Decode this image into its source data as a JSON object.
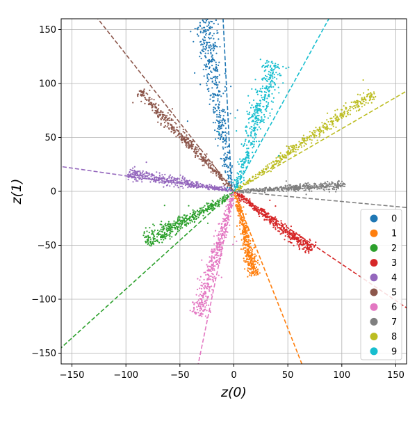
{
  "chart_data": {
    "type": "scatter",
    "title": "",
    "xlabel": "z(0)",
    "ylabel": "z(1)",
    "xlim": [
      -160,
      160
    ],
    "ylim": [
      -160,
      160
    ],
    "xticks": [
      -150,
      -100,
      -50,
      0,
      50,
      100,
      150
    ],
    "yticks": [
      -150,
      -100,
      -50,
      0,
      50,
      100,
      150
    ],
    "grid": true,
    "legend_position": "lower-right",
    "series": [
      {
        "name": "0",
        "color": "#1f77b4",
        "ray_start": [
          -2,
          2
        ],
        "ray_end": [
          -28,
          160
        ],
        "trend_line": [
          [
            -2,
            0
          ],
          [
            -10,
            160
          ]
        ],
        "spread": 5
      },
      {
        "name": "1",
        "color": "#ff7f0e",
        "ray_start": [
          2,
          -3
        ],
        "ray_end": [
          19,
          -78
        ],
        "trend_line": [
          [
            0,
            0
          ],
          [
            63,
            -160
          ]
        ],
        "spread": 3
      },
      {
        "name": "2",
        "color": "#2ca02c",
        "ray_start": [
          -2,
          -3
        ],
        "ray_end": [
          -82,
          -47
        ],
        "trend_line": [
          [
            0,
            0
          ],
          [
            -160,
            -145
          ]
        ],
        "spread": 4
      },
      {
        "name": "3",
        "color": "#d62728",
        "ray_start": [
          3,
          -2
        ],
        "ray_end": [
          72,
          -55
        ],
        "trend_line": [
          [
            0,
            0
          ],
          [
            160,
            -108
          ]
        ],
        "spread": 3
      },
      {
        "name": "4",
        "color": "#9467bd",
        "ray_start": [
          -3,
          1
        ],
        "ray_end": [
          -98,
          17
        ],
        "trend_line": [
          [
            0,
            0
          ],
          [
            -160,
            23
          ]
        ],
        "spread": 3
      },
      {
        "name": "5",
        "color": "#8c564b",
        "ray_start": [
          -2,
          2
        ],
        "ray_end": [
          -88,
          93
        ],
        "trend_line": [
          [
            0,
            0
          ],
          [
            -126,
            160
          ]
        ],
        "spread": 3
      },
      {
        "name": "6",
        "color": "#e377c2",
        "ray_start": [
          -1,
          -3
        ],
        "ray_end": [
          -33,
          -115
        ],
        "trend_line": [
          [
            0,
            0
          ],
          [
            -33,
            -160
          ]
        ],
        "spread": 4
      },
      {
        "name": "7",
        "color": "#7f7f7f",
        "ray_start": [
          3,
          0
        ],
        "ray_end": [
          103,
          6
        ],
        "trend_line": [
          [
            0,
            0
          ],
          [
            160,
            -15
          ]
        ],
        "spread": 2
      },
      {
        "name": "8",
        "color": "#bcbd22",
        "ray_start": [
          3,
          2
        ],
        "ray_end": [
          130,
          92
        ],
        "trend_line": [
          [
            0,
            0
          ],
          [
            160,
            93
          ]
        ],
        "spread": 3
      },
      {
        "name": "9",
        "color": "#17becf",
        "ray_start": [
          2,
          3
        ],
        "ray_end": [
          38,
          120
        ],
        "trend_line": [
          [
            0,
            0
          ],
          [
            88,
            160
          ]
        ],
        "spread": 6
      }
    ]
  }
}
